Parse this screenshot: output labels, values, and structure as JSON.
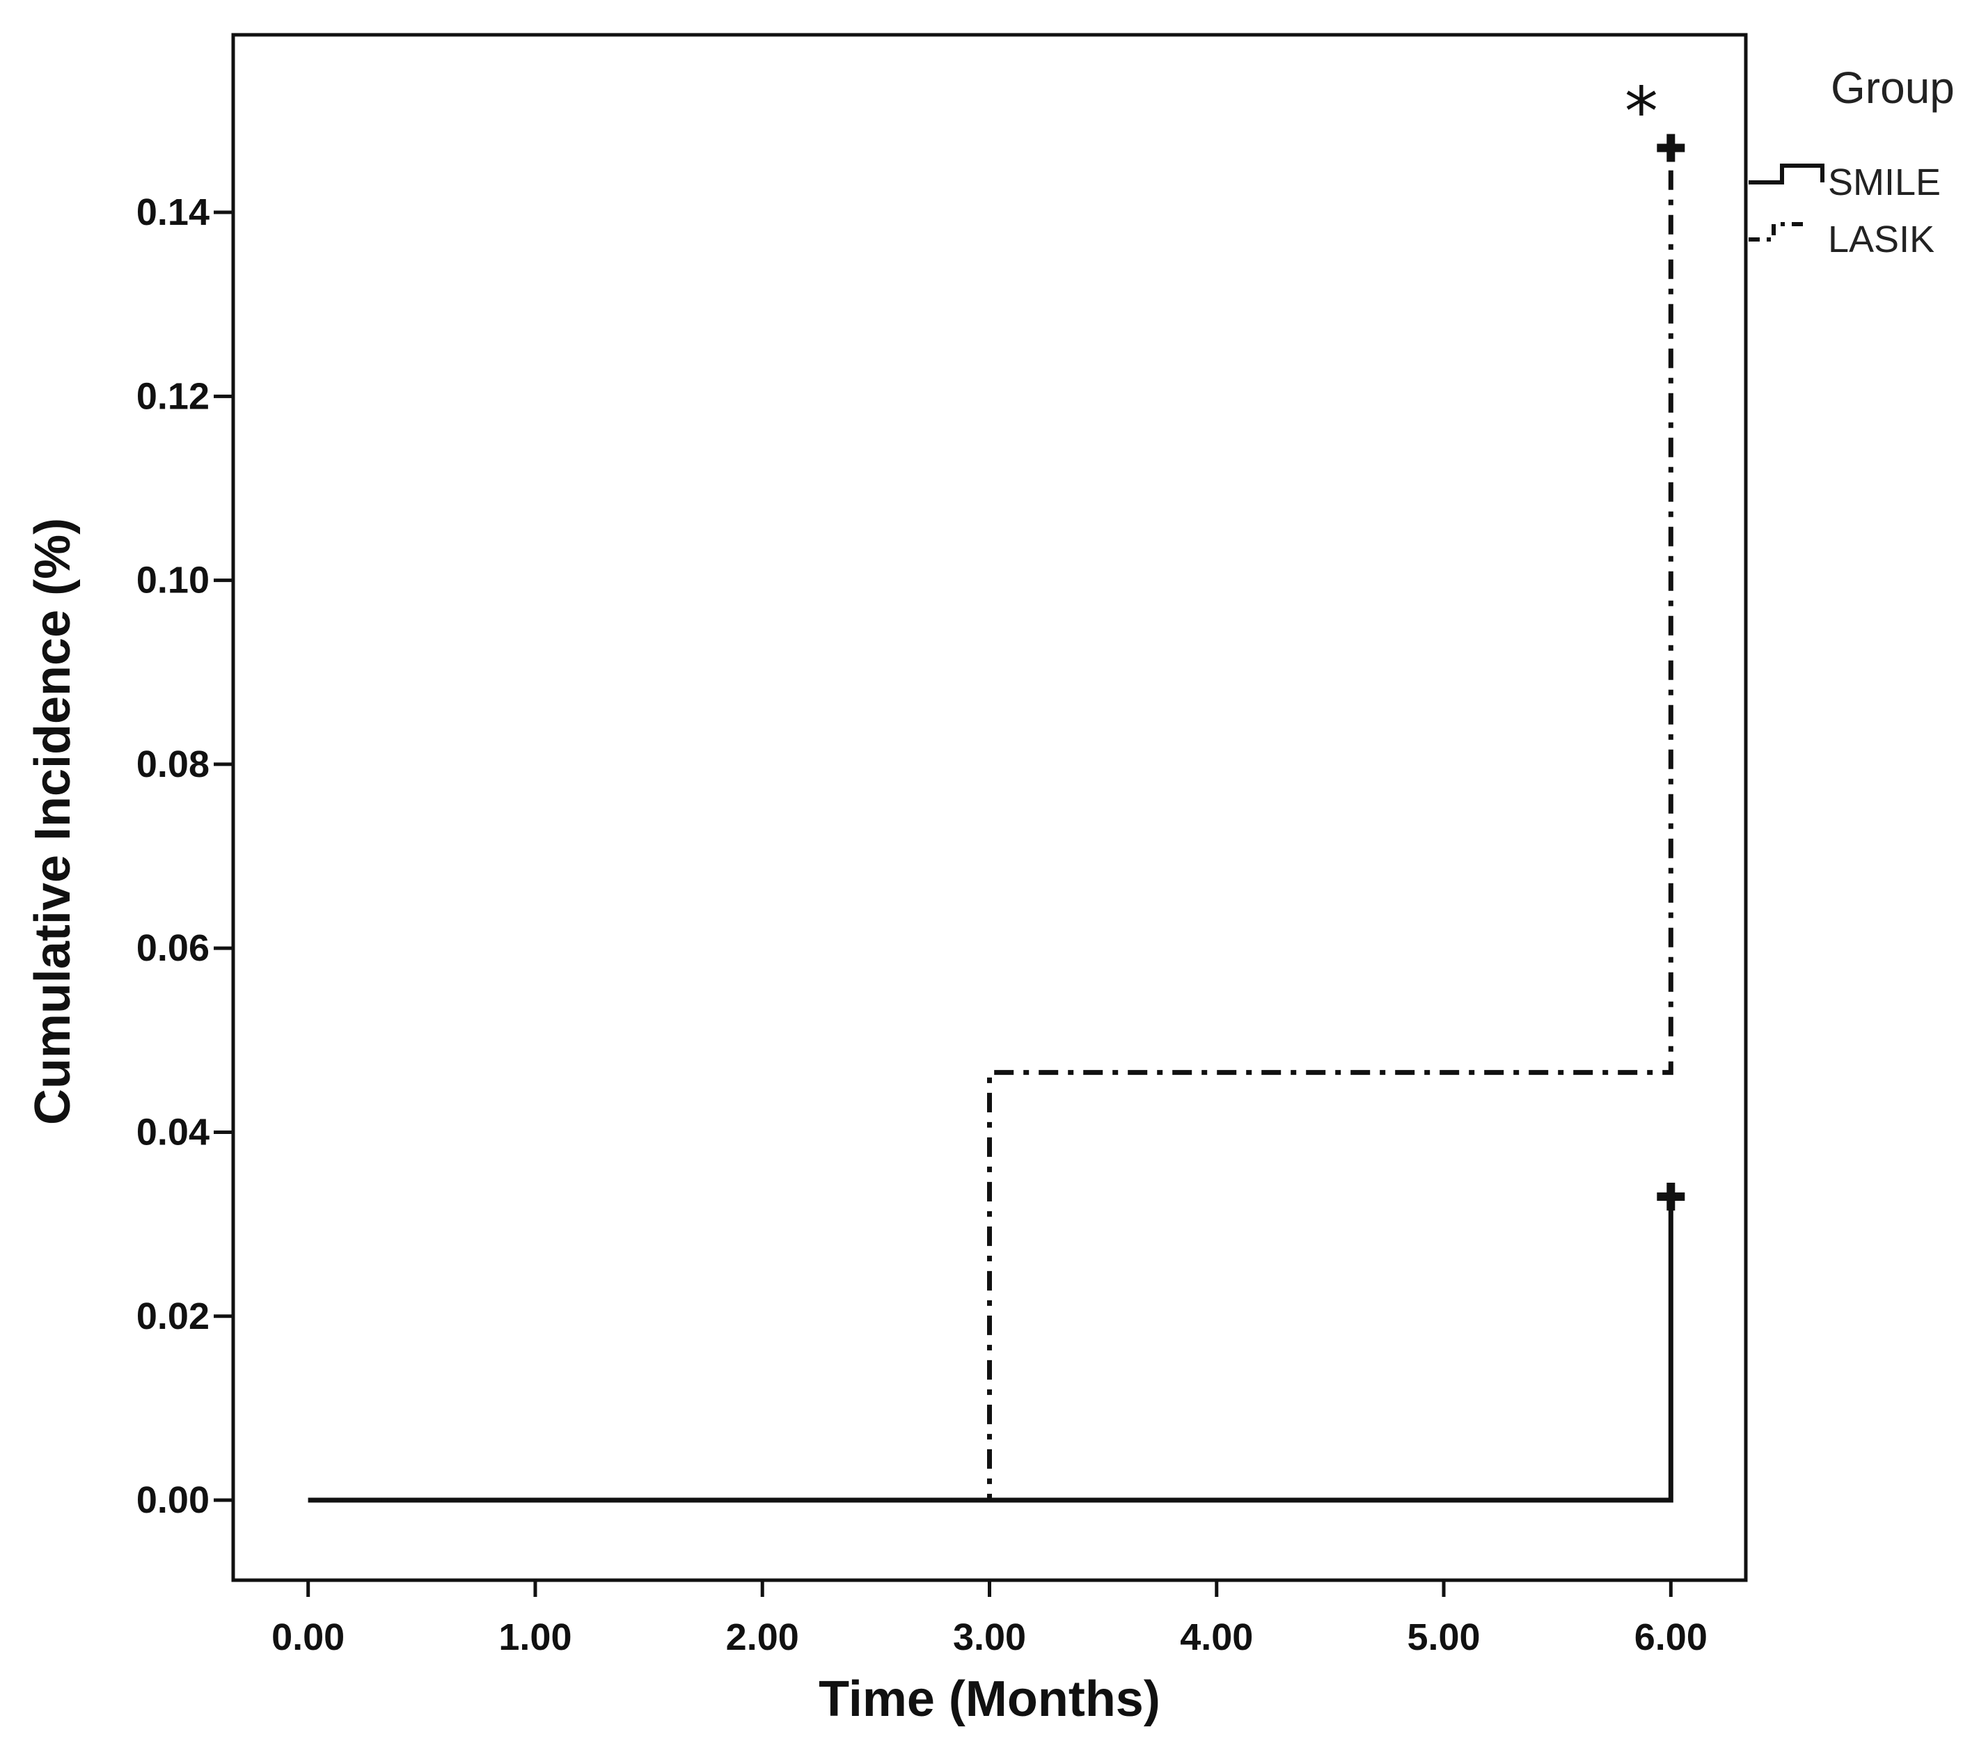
{
  "chart_data": {
    "type": "line",
    "subtype": "step",
    "title": "",
    "xlabel": "Time (Months)",
    "ylabel": "Cumulative Incidence (%)",
    "xlim": [
      -0.33,
      6.33
    ],
    "ylim": [
      -0.0087,
      0.1593
    ],
    "xticks": [
      0,
      1,
      2,
      3,
      4,
      5,
      6
    ],
    "xtick_labels": [
      "0.00",
      "1.00",
      "2.00",
      "3.00",
      "4.00",
      "5.00",
      "6.00"
    ],
    "yticks": [
      0,
      0.02,
      0.04,
      0.06,
      0.08,
      0.1,
      0.12,
      0.14
    ],
    "ytick_labels": [
      "0.00",
      "0.02",
      "0.04",
      "0.06",
      "0.08",
      "0.10",
      "0.12",
      "0.14"
    ],
    "grid": false,
    "legend": {
      "title": "Group",
      "position": "outside-top-right"
    },
    "annotation": {
      "text": "*",
      "x": 5.87,
      "y": 0.153
    },
    "series": [
      {
        "name": "SMILE",
        "line_style": "solid",
        "color": "#111111",
        "x": [
          0,
          6,
          6
        ],
        "y": [
          0,
          0,
          0.033
        ],
        "censored": [
          {
            "x": 6,
            "y": 0.033
          }
        ]
      },
      {
        "name": "LASIK",
        "line_style": "dash-dot",
        "color": "#111111",
        "x": [
          0,
          3,
          3,
          6,
          6
        ],
        "y": [
          0,
          0,
          0.0465,
          0.0465,
          0.147
        ],
        "censored": [
          {
            "x": 6,
            "y": 0.147
          }
        ]
      }
    ]
  }
}
